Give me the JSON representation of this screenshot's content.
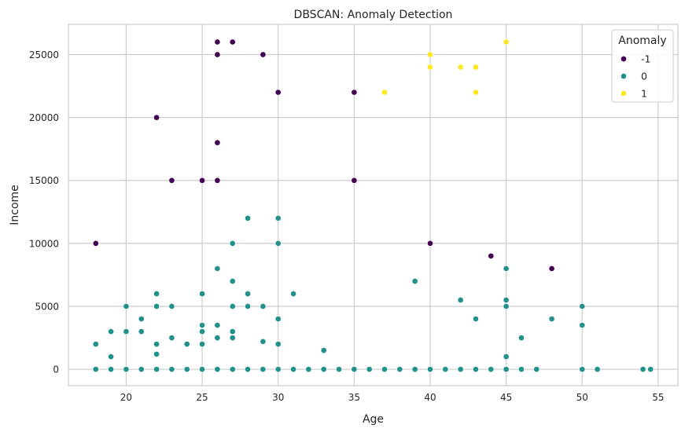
{
  "chart_data": {
    "type": "scatter",
    "title": "DBSCAN: Anomaly Detection",
    "xlabel": "Age",
    "ylabel": "Income",
    "xlim": [
      16.2,
      56.3
    ],
    "ylim": [
      -1300,
      27400
    ],
    "xticks": [
      20,
      25,
      30,
      35,
      40,
      45,
      50,
      55
    ],
    "yticks": [
      0,
      5000,
      10000,
      15000,
      20000,
      25000
    ],
    "grid": true,
    "legend": {
      "title": "Anomaly",
      "placement": "top-right"
    },
    "series": [
      {
        "name": "-1",
        "color": "#440154",
        "points": [
          [
            18,
            10000
          ],
          [
            22,
            20000
          ],
          [
            23,
            15000
          ],
          [
            25,
            15000
          ],
          [
            26,
            26000
          ],
          [
            26,
            25000
          ],
          [
            26,
            18000
          ],
          [
            26,
            15000
          ],
          [
            27,
            26000
          ],
          [
            29,
            25000
          ],
          [
            30,
            22000
          ],
          [
            35,
            22000
          ],
          [
            35,
            15000
          ],
          [
            40,
            10000
          ],
          [
            44,
            9000
          ],
          [
            48,
            8000
          ]
        ]
      },
      {
        "name": "0",
        "color": "#21918c",
        "points": [
          [
            18,
            2000
          ],
          [
            18,
            0
          ],
          [
            19,
            3000
          ],
          [
            19,
            1000
          ],
          [
            19,
            0
          ],
          [
            20,
            5000
          ],
          [
            20,
            3000
          ],
          [
            20,
            0
          ],
          [
            21,
            4000
          ],
          [
            21,
            3000
          ],
          [
            21,
            0
          ],
          [
            22,
            6000
          ],
          [
            22,
            5000
          ],
          [
            22,
            2000
          ],
          [
            22,
            1200
          ],
          [
            22,
            0
          ],
          [
            23,
            5000
          ],
          [
            23,
            2500
          ],
          [
            23,
            0
          ],
          [
            24,
            2000
          ],
          [
            24,
            0
          ],
          [
            25,
            6000
          ],
          [
            25,
            3500
          ],
          [
            25,
            3000
          ],
          [
            25,
            2000
          ],
          [
            25,
            0
          ],
          [
            26,
            8000
          ],
          [
            26,
            3500
          ],
          [
            26,
            2500
          ],
          [
            26,
            0
          ],
          [
            27,
            10000
          ],
          [
            27,
            7000
          ],
          [
            27,
            5000
          ],
          [
            27,
            3000
          ],
          [
            27,
            2500
          ],
          [
            27,
            0
          ],
          [
            28,
            12000
          ],
          [
            28,
            6000
          ],
          [
            28,
            5000
          ],
          [
            28,
            0
          ],
          [
            29,
            5000
          ],
          [
            29,
            2200
          ],
          [
            29,
            0
          ],
          [
            30,
            12000
          ],
          [
            30,
            10000
          ],
          [
            30,
            4000
          ],
          [
            30,
            2000
          ],
          [
            30,
            0
          ],
          [
            31,
            6000
          ],
          [
            31,
            0
          ],
          [
            32,
            0
          ],
          [
            33,
            1500
          ],
          [
            33,
            0
          ],
          [
            34,
            0
          ],
          [
            35,
            0
          ],
          [
            36,
            0
          ],
          [
            37,
            0
          ],
          [
            38,
            0
          ],
          [
            39,
            7000
          ],
          [
            39,
            0
          ],
          [
            40,
            0
          ],
          [
            41,
            0
          ],
          [
            42,
            5500
          ],
          [
            42,
            0
          ],
          [
            43,
            4000
          ],
          [
            43,
            0
          ],
          [
            44,
            0
          ],
          [
            45,
            8000
          ],
          [
            45,
            5500
          ],
          [
            45,
            5000
          ],
          [
            45,
            1000
          ],
          [
            45,
            0
          ],
          [
            46,
            2500
          ],
          [
            46,
            0
          ],
          [
            47,
            0
          ],
          [
            48,
            4000
          ],
          [
            50,
            5000
          ],
          [
            50,
            3500
          ],
          [
            50,
            0
          ],
          [
            51,
            0
          ],
          [
            54,
            0
          ],
          [
            54.5,
            0
          ]
        ]
      },
      {
        "name": "1",
        "color": "#fde725",
        "points": [
          [
            37,
            22000
          ],
          [
            40,
            25000
          ],
          [
            40,
            24000
          ],
          [
            42,
            24000
          ],
          [
            43,
            24000
          ],
          [
            43,
            22000
          ],
          [
            45,
            26000
          ]
        ]
      }
    ]
  }
}
